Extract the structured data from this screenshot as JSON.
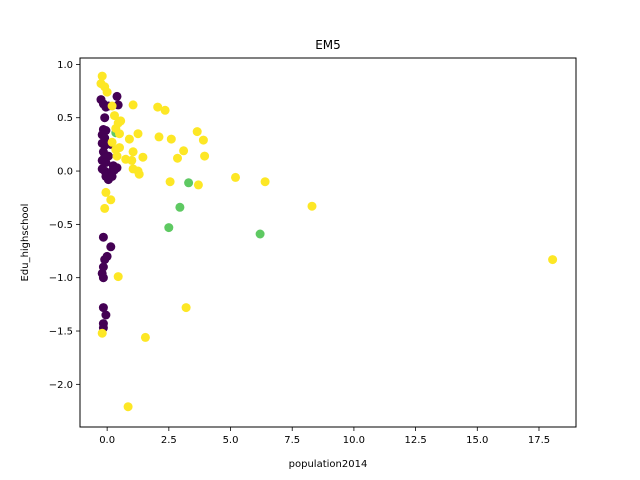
{
  "chart_data": {
    "type": "scatter",
    "title": "EM5",
    "xlabel": "population2014",
    "ylabel": "Edu_highschool",
    "xlim": [
      -1.1,
      19.0
    ],
    "ylim": [
      -2.4,
      1.06
    ],
    "xticks": [
      0.0,
      2.5,
      5.0,
      7.5,
      10.0,
      12.5,
      15.0,
      17.5
    ],
    "xtick_labels": [
      "0.0",
      "2.5",
      "5.0",
      "7.5",
      "10.0",
      "12.5",
      "15.0",
      "17.5"
    ],
    "yticks": [
      1.0,
      0.5,
      0.0,
      -0.5,
      -1.0,
      -1.5,
      -2.0
    ],
    "ytick_labels": [
      "1.0",
      "0.5",
      "0.0",
      "−0.5",
      "−1.0",
      "−1.5",
      "−2.0"
    ],
    "grid": false,
    "legend": "none",
    "colors": {
      "purple": "#440154",
      "green": "#5ec962",
      "yellow": "#fde725"
    },
    "series": [
      {
        "color": "purple",
        "points": [
          [
            -0.25,
            0.67
          ],
          [
            -0.15,
            0.63
          ],
          [
            -0.05,
            0.6
          ],
          [
            0.05,
            0.61
          ],
          [
            0.4,
            0.7
          ],
          [
            0.45,
            0.62
          ],
          [
            -0.1,
            0.5
          ],
          [
            -0.15,
            0.39
          ],
          [
            -0.05,
            0.38
          ],
          [
            -0.2,
            0.34
          ],
          [
            -0.1,
            0.31
          ],
          [
            -0.2,
            0.26
          ],
          [
            -0.1,
            0.24
          ],
          [
            0.05,
            0.26
          ],
          [
            0.15,
            0.25
          ],
          [
            -0.15,
            0.18
          ],
          [
            -0.1,
            0.13
          ],
          [
            0.05,
            0.14
          ],
          [
            -0.2,
            0.1
          ],
          [
            -0.05,
            0.08
          ],
          [
            0.25,
            0.05
          ],
          [
            0.4,
            0.03
          ],
          [
            -0.2,
            0.02
          ],
          [
            -0.1,
            0.0
          ],
          [
            0.0,
            -0.02
          ],
          [
            0.1,
            -0.02
          ],
          [
            0.2,
            0.0
          ],
          [
            0.3,
            0.01
          ],
          [
            -0.05,
            -0.05
          ],
          [
            0.05,
            -0.08
          ],
          [
            0.2,
            -0.05
          ],
          [
            -0.15,
            -0.62
          ],
          [
            0.15,
            -0.71
          ],
          [
            0.0,
            -0.8
          ],
          [
            -0.1,
            -0.83
          ],
          [
            -0.15,
            -0.9
          ],
          [
            -0.2,
            -0.96
          ],
          [
            -0.15,
            -1.0
          ],
          [
            -0.15,
            -1.28
          ],
          [
            -0.05,
            -1.35
          ],
          [
            -0.15,
            -1.43
          ],
          [
            -0.15,
            -1.47
          ]
        ]
      },
      {
        "color": "green",
        "points": [
          [
            0.35,
            0.36
          ],
          [
            2.95,
            -0.34
          ],
          [
            3.3,
            -0.11
          ],
          [
            2.5,
            -0.53
          ],
          [
            6.2,
            -0.59
          ]
        ]
      },
      {
        "color": "yellow",
        "points": [
          [
            -0.2,
            0.89
          ],
          [
            -0.25,
            0.82
          ],
          [
            -0.1,
            0.79
          ],
          [
            0.0,
            0.74
          ],
          [
            0.2,
            0.61
          ],
          [
            0.3,
            0.52
          ],
          [
            0.45,
            0.45
          ],
          [
            0.55,
            0.47
          ],
          [
            0.35,
            0.4
          ],
          [
            0.5,
            0.35
          ],
          [
            0.2,
            0.27
          ],
          [
            0.35,
            0.2
          ],
          [
            0.5,
            0.22
          ],
          [
            0.4,
            0.14
          ],
          [
            0.75,
            0.11
          ],
          [
            0.9,
            0.3
          ],
          [
            1.05,
            0.62
          ],
          [
            1.25,
            0.35
          ],
          [
            1.05,
            0.18
          ],
          [
            1.0,
            0.1
          ],
          [
            1.05,
            0.02
          ],
          [
            1.25,
            0.0
          ],
          [
            1.3,
            -0.03
          ],
          [
            1.45,
            0.13
          ],
          [
            2.05,
            0.6
          ],
          [
            2.35,
            0.57
          ],
          [
            2.1,
            0.32
          ],
          [
            2.6,
            0.3
          ],
          [
            2.85,
            0.12
          ],
          [
            3.1,
            0.19
          ],
          [
            3.65,
            0.37
          ],
          [
            3.9,
            0.29
          ],
          [
            3.95,
            0.14
          ],
          [
            2.55,
            -0.1
          ],
          [
            3.7,
            -0.13
          ],
          [
            5.2,
            -0.06
          ],
          [
            6.4,
            -0.1
          ],
          [
            8.3,
            -0.33
          ],
          [
            18.05,
            -0.83
          ],
          [
            -0.05,
            -0.2
          ],
          [
            0.15,
            -0.27
          ],
          [
            -0.1,
            -0.35
          ],
          [
            0.45,
            -0.99
          ],
          [
            3.2,
            -1.28
          ],
          [
            1.55,
            -1.56
          ],
          [
            -0.2,
            -1.52
          ],
          [
            0.85,
            -2.21
          ]
        ]
      }
    ]
  }
}
